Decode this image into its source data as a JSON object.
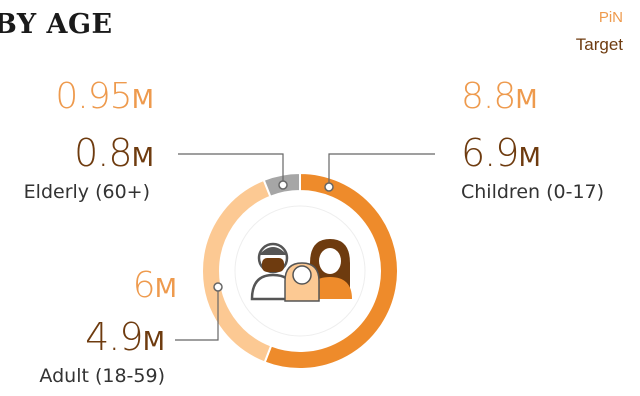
{
  "header": {
    "title": "BY AGE"
  },
  "legend": {
    "pin_label": "PiN",
    "target_label": "Target"
  },
  "colors": {
    "pin": "#ee9a4d",
    "target": "#6e3b0f",
    "children": "#ee8b2b",
    "adult": "#fcc993",
    "elderly": "#a6a6a6",
    "leader": "#666666"
  },
  "groups": {
    "elderly": {
      "pin": "0.95",
      "target": "0.8",
      "unit": "M",
      "label": "Elderly (60+)"
    },
    "children": {
      "pin": "8.8",
      "target": "6.9",
      "unit": "M",
      "label": "Children (0-17)"
    },
    "adult": {
      "pin": "6",
      "target": "4.9",
      "unit": "M",
      "label": "Adult (18-59)"
    }
  },
  "icon": {
    "name": "family-people-icon"
  },
  "chart_data": {
    "type": "pie",
    "variant": "donut",
    "categories": [
      "Children (0-17)",
      "Adult (18-59)",
      "Elderly (60+)"
    ],
    "series": [
      {
        "name": "PiN",
        "values": [
          8.8,
          6,
          0.95
        ]
      },
      {
        "name": "Target",
        "values": [
          6.9,
          4.9,
          0.8
        ]
      }
    ],
    "slice_colors": [
      "#ee8b2b",
      "#fcc993",
      "#a6a6a6"
    ],
    "unit": "M"
  }
}
